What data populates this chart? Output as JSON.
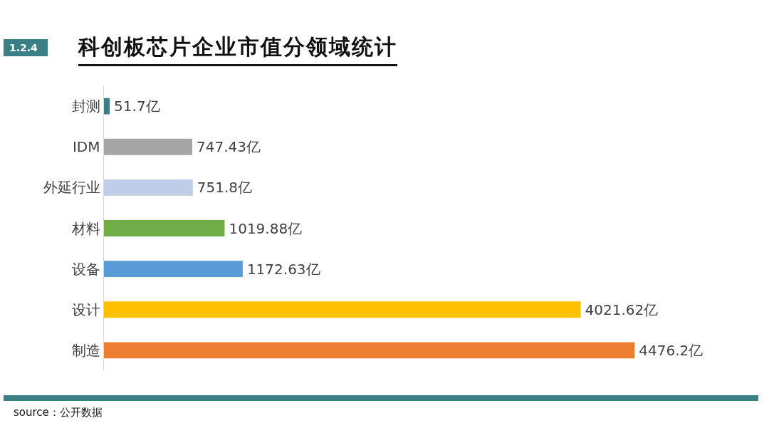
{
  "chart_data": {
    "type": "bar",
    "orientation": "horizontal",
    "title": "科创板芯片企业市值分领域统计",
    "categories": [
      "封测",
      "IDM",
      "外延行业",
      "材料",
      "设备",
      "设计",
      "制造"
    ],
    "values": [
      51.7,
      747.43,
      751.8,
      1019.88,
      1172.63,
      4021.62,
      4476.2
    ],
    "colors": [
      "#3a7f86",
      "#a5a5a5",
      "#bfcde8",
      "#70ad47",
      "#5b9bd5",
      "#ffc000",
      "#ed7d31"
    ],
    "value_labels": [
      "51.7亿",
      "747.43亿",
      "751.8亿",
      "1019.88亿",
      "1172.63亿",
      "4021.62亿",
      "4476.2亿"
    ],
    "annotations": [
      "1.2.4",
      "source：公开数据"
    ]
  }
}
